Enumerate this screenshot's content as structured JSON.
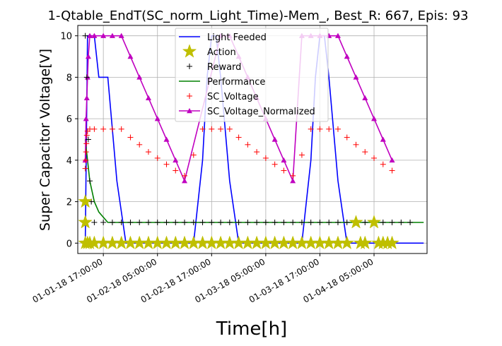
{
  "chart_data": {
    "type": "line",
    "title": "1-Qtable_EndT(SC_norm_Light_Time)-Mem_, Best_R: 667, Epis: 93",
    "xlabel": "Time[h]",
    "ylabel": "Super Capacitor Voltage[V]",
    "xlim": [
      "2018-01-01 11:20",
      "2018-01-04 16:45"
    ],
    "ylim": [
      -0.5,
      10.5
    ],
    "x_ticks": [
      {
        "t": "2018-01-01 17:00",
        "label": "01-01-18 17:00:00"
      },
      {
        "t": "2018-01-02 05:00",
        "label": "01-02-18 05:00:00"
      },
      {
        "t": "2018-01-02 17:00",
        "label": "01-02-18 17:00:00"
      },
      {
        "t": "2018-01-03 05:00",
        "label": "01-03-18 05:00:00"
      },
      {
        "t": "2018-01-03 17:00",
        "label": "01-03-18 17:00:00"
      },
      {
        "t": "2018-01-04 05:00",
        "label": "01-04-18 05:00:00"
      }
    ],
    "y_ticks": [
      0,
      2,
      4,
      6,
      8,
      10
    ],
    "grid": true,
    "legend_position": "top-center",
    "series": [
      {
        "name": "Light Feeded",
        "style": "line",
        "color": "#0000ff",
        "points": [
          [
            "2018-01-01 13:00",
            0
          ],
          [
            "2018-01-01 13:30",
            10
          ],
          [
            "2018-01-01 14:00",
            10
          ],
          [
            "2018-01-01 15:00",
            10
          ],
          [
            "2018-01-01 16:00",
            8
          ],
          [
            "2018-01-01 18:00",
            8
          ],
          [
            "2018-01-01 20:00",
            3
          ],
          [
            "2018-01-01 22:00",
            0
          ],
          [
            "2018-01-02 13:00",
            0
          ],
          [
            "2018-01-02 15:00",
            4
          ],
          [
            "2018-01-02 16:00",
            8
          ],
          [
            "2018-01-02 17:00",
            10
          ],
          [
            "2018-01-02 18:00",
            10
          ],
          [
            "2018-01-02 19:00",
            8
          ],
          [
            "2018-01-02 21:00",
            3
          ],
          [
            "2018-01-02 23:00",
            0
          ],
          [
            "2018-01-03 13:00",
            0
          ],
          [
            "2018-01-03 15:00",
            4
          ],
          [
            "2018-01-03 16:00",
            8
          ],
          [
            "2018-01-03 17:00",
            10
          ],
          [
            "2018-01-03 18:00",
            10
          ],
          [
            "2018-01-03 19:00",
            8
          ],
          [
            "2018-01-03 21:00",
            3
          ],
          [
            "2018-01-03 23:00",
            0
          ],
          [
            "2018-01-04 16:00",
            0
          ]
        ]
      },
      {
        "name": "Action",
        "style": "star",
        "color": "#bfbf00",
        "points": [
          [
            "2018-01-01 13:00",
            0
          ],
          [
            "2018-01-01 13:00",
            1
          ],
          [
            "2018-01-01 13:00",
            2
          ],
          [
            "2018-01-01 13:30",
            0
          ],
          [
            "2018-01-01 14:00",
            0
          ],
          [
            "2018-01-01 15:00",
            0
          ],
          [
            "2018-01-01 17:00",
            0
          ],
          [
            "2018-01-01 19:00",
            0
          ],
          [
            "2018-01-01 21:00",
            0
          ],
          [
            "2018-01-01 23:00",
            0
          ],
          [
            "2018-01-02 01:00",
            0
          ],
          [
            "2018-01-02 03:00",
            0
          ],
          [
            "2018-01-02 05:00",
            0
          ],
          [
            "2018-01-02 07:00",
            0
          ],
          [
            "2018-01-02 09:00",
            0
          ],
          [
            "2018-01-02 11:00",
            0
          ],
          [
            "2018-01-02 13:00",
            0
          ],
          [
            "2018-01-02 15:00",
            0
          ],
          [
            "2018-01-02 17:00",
            0
          ],
          [
            "2018-01-02 19:00",
            0
          ],
          [
            "2018-01-02 21:00",
            0
          ],
          [
            "2018-01-02 23:00",
            0
          ],
          [
            "2018-01-03 01:00",
            0
          ],
          [
            "2018-01-03 03:00",
            0
          ],
          [
            "2018-01-03 05:00",
            0
          ],
          [
            "2018-01-03 07:00",
            0
          ],
          [
            "2018-01-03 09:00",
            0
          ],
          [
            "2018-01-03 11:00",
            0
          ],
          [
            "2018-01-03 13:00",
            0
          ],
          [
            "2018-01-03 15:00",
            0
          ],
          [
            "2018-01-03 17:00",
            0
          ],
          [
            "2018-01-03 19:00",
            0
          ],
          [
            "2018-01-03 21:00",
            0
          ],
          [
            "2018-01-03 23:00",
            0
          ],
          [
            "2018-01-04 01:00",
            1
          ],
          [
            "2018-01-04 02:00",
            0
          ],
          [
            "2018-01-04 03:00",
            0
          ],
          [
            "2018-01-04 05:00",
            1
          ],
          [
            "2018-01-04 06:00",
            0
          ],
          [
            "2018-01-04 07:00",
            0
          ],
          [
            "2018-01-04 08:00",
            0
          ],
          [
            "2018-01-04 09:00",
            0
          ]
        ]
      },
      {
        "name": "Reward",
        "style": "plus",
        "color": "#000000",
        "points": [
          [
            "2018-01-01 13:00",
            10
          ],
          [
            "2018-01-01 13:20",
            8
          ],
          [
            "2018-01-01 13:40",
            5
          ],
          [
            "2018-01-01 14:00",
            3
          ],
          [
            "2018-01-01 14:20",
            2
          ],
          [
            "2018-01-01 15:00",
            1
          ],
          [
            "2018-01-01 17:00",
            1
          ],
          [
            "2018-01-01 19:00",
            1
          ],
          [
            "2018-01-01 21:00",
            1
          ],
          [
            "2018-01-01 23:00",
            1
          ],
          [
            "2018-01-02 01:00",
            1
          ],
          [
            "2018-01-02 03:00",
            1
          ],
          [
            "2018-01-02 05:00",
            1
          ],
          [
            "2018-01-02 07:00",
            1
          ],
          [
            "2018-01-02 09:00",
            1
          ],
          [
            "2018-01-02 11:00",
            1
          ],
          [
            "2018-01-02 13:00",
            1
          ],
          [
            "2018-01-02 15:00",
            1
          ],
          [
            "2018-01-02 17:00",
            1
          ],
          [
            "2018-01-02 19:00",
            1
          ],
          [
            "2018-01-02 21:00",
            1
          ],
          [
            "2018-01-02 23:00",
            1
          ],
          [
            "2018-01-03 01:00",
            1
          ],
          [
            "2018-01-03 03:00",
            1
          ],
          [
            "2018-01-03 05:00",
            1
          ],
          [
            "2018-01-03 07:00",
            1
          ],
          [
            "2018-01-03 09:00",
            1
          ],
          [
            "2018-01-03 11:00",
            1
          ],
          [
            "2018-01-03 13:00",
            1
          ],
          [
            "2018-01-03 15:00",
            1
          ],
          [
            "2018-01-03 17:00",
            1
          ],
          [
            "2018-01-03 19:00",
            1
          ],
          [
            "2018-01-03 21:00",
            1
          ],
          [
            "2018-01-03 23:00",
            1
          ],
          [
            "2018-01-04 01:00",
            1
          ],
          [
            "2018-01-04 03:00",
            1
          ],
          [
            "2018-01-04 05:00",
            1
          ],
          [
            "2018-01-04 07:00",
            1
          ],
          [
            "2018-01-04 09:00",
            1
          ],
          [
            "2018-01-04 11:00",
            1
          ],
          [
            "2018-01-04 13:00",
            1
          ]
        ]
      },
      {
        "name": "Performance",
        "style": "line",
        "color": "#008000",
        "points": [
          [
            "2018-01-01 13:00",
            5
          ],
          [
            "2018-01-01 14:00",
            3
          ],
          [
            "2018-01-01 15:00",
            2
          ],
          [
            "2018-01-01 16:00",
            1.5
          ],
          [
            "2018-01-01 18:00",
            1
          ],
          [
            "2018-01-02 12:00",
            1
          ],
          [
            "2018-01-03 12:00",
            1
          ],
          [
            "2018-01-04 16:00",
            1
          ]
        ]
      },
      {
        "name": "SC_Voltage",
        "style": "plus",
        "color": "#ff0000",
        "points": [
          [
            "2018-01-01 13:00",
            3.6
          ],
          [
            "2018-01-01 13:05",
            4.0
          ],
          [
            "2018-01-01 13:10",
            4.4
          ],
          [
            "2018-01-01 13:15",
            4.8
          ],
          [
            "2018-01-01 13:20",
            5.2
          ],
          [
            "2018-01-01 13:30",
            5.4
          ],
          [
            "2018-01-01 14:00",
            5.5
          ],
          [
            "2018-01-01 15:00",
            5.5
          ],
          [
            "2018-01-01 17:00",
            5.5
          ],
          [
            "2018-01-01 19:00",
            5.5
          ],
          [
            "2018-01-01 21:00",
            5.5
          ],
          [
            "2018-01-01 23:00",
            5.1
          ],
          [
            "2018-01-02 01:00",
            4.75
          ],
          [
            "2018-01-02 03:00",
            4.4
          ],
          [
            "2018-01-02 05:00",
            4.1
          ],
          [
            "2018-01-02 07:00",
            3.8
          ],
          [
            "2018-01-02 09:00",
            3.5
          ],
          [
            "2018-01-02 11:00",
            3.25
          ],
          [
            "2018-01-02 13:00",
            4.25
          ],
          [
            "2018-01-02 15:00",
            5.5
          ],
          [
            "2018-01-02 17:00",
            5.5
          ],
          [
            "2018-01-02 19:00",
            5.5
          ],
          [
            "2018-01-02 21:00",
            5.5
          ],
          [
            "2018-01-02 23:00",
            5.1
          ],
          [
            "2018-01-03 01:00",
            4.75
          ],
          [
            "2018-01-03 03:00",
            4.4
          ],
          [
            "2018-01-03 05:00",
            4.1
          ],
          [
            "2018-01-03 07:00",
            3.8
          ],
          [
            "2018-01-03 09:00",
            3.5
          ],
          [
            "2018-01-03 11:00",
            3.25
          ],
          [
            "2018-01-03 13:00",
            4.25
          ],
          [
            "2018-01-03 15:00",
            5.5
          ],
          [
            "2018-01-03 17:00",
            5.5
          ],
          [
            "2018-01-03 19:00",
            5.5
          ],
          [
            "2018-01-03 21:00",
            5.5
          ],
          [
            "2018-01-03 23:00",
            5.1
          ],
          [
            "2018-01-04 01:00",
            4.75
          ],
          [
            "2018-01-04 03:00",
            4.4
          ],
          [
            "2018-01-04 05:00",
            4.1
          ],
          [
            "2018-01-04 07:00",
            3.8
          ],
          [
            "2018-01-04 09:00",
            3.5
          ]
        ]
      },
      {
        "name": "SC_Voltage_Normalized",
        "style": "line-triangle",
        "color": "#c000c0",
        "points": [
          [
            "2018-01-01 13:00",
            4
          ],
          [
            "2018-01-01 13:10",
            6
          ],
          [
            "2018-01-01 13:20",
            7
          ],
          [
            "2018-01-01 13:30",
            8
          ],
          [
            "2018-01-01 13:40",
            9
          ],
          [
            "2018-01-01 14:00",
            10
          ],
          [
            "2018-01-01 15:00",
            10
          ],
          [
            "2018-01-01 17:00",
            10
          ],
          [
            "2018-01-01 19:00",
            10
          ],
          [
            "2018-01-01 21:00",
            10
          ],
          [
            "2018-01-01 23:00",
            9
          ],
          [
            "2018-01-02 01:00",
            8
          ],
          [
            "2018-01-02 03:00",
            7
          ],
          [
            "2018-01-02 05:00",
            6
          ],
          [
            "2018-01-02 07:00",
            5
          ],
          [
            "2018-01-02 09:00",
            4
          ],
          [
            "2018-01-02 11:00",
            3
          ],
          [
            "2018-01-02 19:00",
            10
          ],
          [
            "2018-01-02 21:00",
            10
          ],
          [
            "2018-01-02 23:00",
            9
          ],
          [
            "2018-01-03 01:00",
            8
          ],
          [
            "2018-01-03 03:00",
            7
          ],
          [
            "2018-01-03 05:00",
            6
          ],
          [
            "2018-01-03 07:00",
            5
          ],
          [
            "2018-01-03 09:00",
            4
          ],
          [
            "2018-01-03 11:00",
            3
          ],
          [
            "2018-01-03 13:00",
            10
          ],
          [
            "2018-01-03 15:00",
            10
          ],
          [
            "2018-01-03 17:00",
            10
          ],
          [
            "2018-01-03 19:00",
            10
          ],
          [
            "2018-01-03 21:00",
            10
          ],
          [
            "2018-01-03 23:00",
            9
          ],
          [
            "2018-01-04 01:00",
            8
          ],
          [
            "2018-01-04 03:00",
            7
          ],
          [
            "2018-01-04 05:00",
            6
          ],
          [
            "2018-01-04 07:00",
            5
          ],
          [
            "2018-01-04 09:00",
            4
          ]
        ]
      }
    ]
  }
}
